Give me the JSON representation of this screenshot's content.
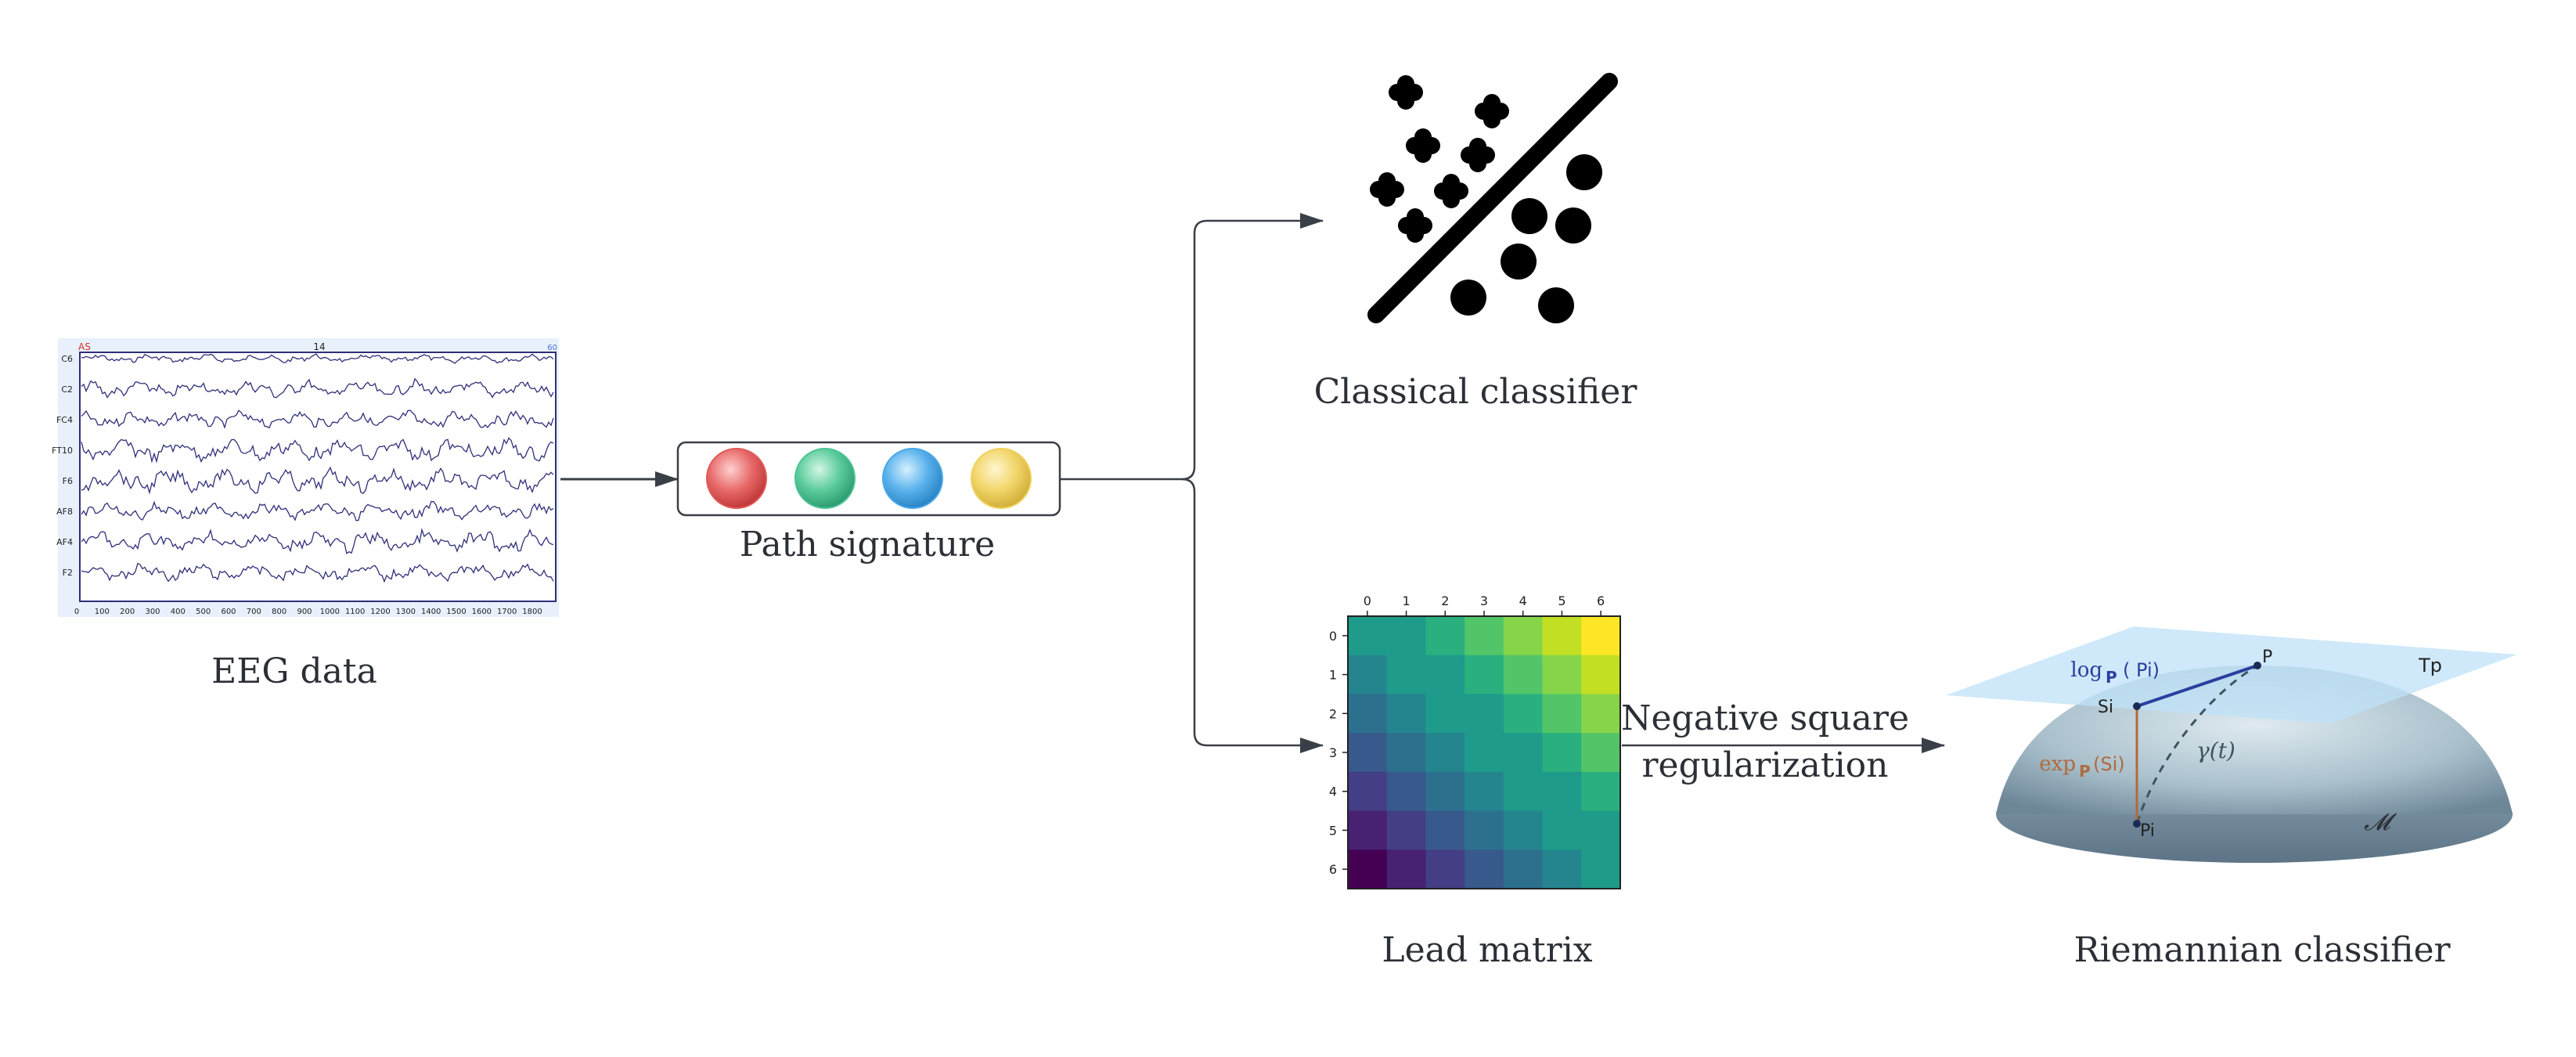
{
  "labels": {
    "eeg": "EEG data",
    "path_signature": "Path signature",
    "classical": "Classical classifier",
    "lead_matrix": "Lead matrix",
    "negsq_line1": "Negative square",
    "negsq_line2": "regularization",
    "riemannian": "Riemannian classifier"
  },
  "eeg_panel": {
    "top_center_label": "14",
    "top_left_mark": "AS",
    "top_right_mark": "60",
    "channels": [
      "C6",
      "C2",
      "FC4",
      "FT10",
      "F6",
      "AF8",
      "AF4",
      "F2"
    ],
    "x_ticks": [
      "0",
      "100",
      "200",
      "300",
      "400",
      "500",
      "600",
      "700",
      "800",
      "900",
      "1000",
      "1100",
      "1200",
      "1300",
      "1400",
      "1500",
      "1600",
      "1700",
      "1800"
    ],
    "trace_color": "#2f2f7a"
  },
  "path_signature_dots": [
    {
      "name": "red",
      "color": "#e05a5a"
    },
    {
      "name": "green",
      "color": "#4cc494"
    },
    {
      "name": "blue",
      "color": "#4aa8e8"
    },
    {
      "name": "yellow",
      "color": "#f0d25c"
    }
  ],
  "lead_matrix": {
    "row_labels": [
      "0",
      "1",
      "2",
      "3",
      "4",
      "5",
      "6"
    ],
    "col_labels": [
      "0",
      "1",
      "2",
      "3",
      "4",
      "5",
      "6"
    ],
    "colormap": [
      "#440154",
      "#482173",
      "#433e85",
      "#38598c",
      "#2d708e",
      "#25858e",
      "#1e9b8a",
      "#2ab07f",
      "#52c569",
      "#86d549",
      "#c2df23",
      "#fde725"
    ]
  },
  "manifold": {
    "log_label": "log",
    "log_sub": "P",
    "log_arg": "( Pi)",
    "exp_label": "exp",
    "exp_sub": "P",
    "exp_arg": "(Si)",
    "gamma": "γ(t)",
    "point_p": "P",
    "point_si": "Si",
    "point_pi": "Pi",
    "tangent": "Tp",
    "manifold_symbol": "𝓜",
    "log_color": "#2a3f9e",
    "exp_color": "#b06a3c"
  }
}
